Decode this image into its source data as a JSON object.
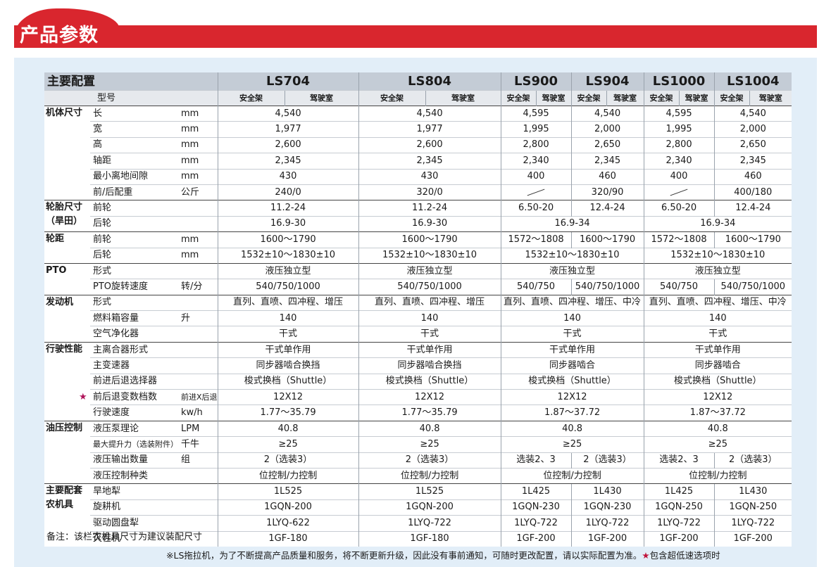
{
  "header": {
    "title": "产品参数"
  },
  "table": {
    "corner": "主要配置",
    "model_label": "型号",
    "models": [
      {
        "name": "LS704",
        "sub": [
          "安全架",
          "驾驶室"
        ]
      },
      {
        "name": "LS804",
        "sub": [
          "安全架",
          "驾驶室"
        ]
      },
      {
        "name": "LS900",
        "sub": [
          "安全架",
          "驾驶室"
        ]
      },
      {
        "name": "LS904",
        "sub": [
          "安全架",
          "驾驶室"
        ]
      },
      {
        "name": "LS1000",
        "sub": [
          "安全架",
          "驾驶室"
        ]
      },
      {
        "name": "LS1004",
        "sub": [
          "安全架",
          "驾驶室"
        ]
      }
    ],
    "groups": [
      {
        "label": [
          "机体尺寸"
        ],
        "rows": [
          {
            "item": "长",
            "unit": "mm",
            "cells": [
              [
                "4,540"
              ],
              [
                "4,540"
              ],
              [
                "4,595",
                "4,540"
              ],
              [
                "4,595",
                "4,540"
              ]
            ]
          },
          {
            "item": "宽",
            "unit": "mm",
            "cells": [
              [
                "1,977"
              ],
              [
                "1,977"
              ],
              [
                "1,995",
                "2,000"
              ],
              [
                "1,995",
                "2,000"
              ]
            ]
          },
          {
            "item": "高",
            "unit": "mm",
            "cells": [
              [
                "2,600"
              ],
              [
                "2,600"
              ],
              [
                "2,800",
                "2,650"
              ],
              [
                "2,800",
                "2,650"
              ]
            ]
          },
          {
            "item": "轴距",
            "unit": "mm",
            "cells": [
              [
                "2,345"
              ],
              [
                "2,345"
              ],
              [
                "2,340",
                "2,345"
              ],
              [
                "2,340",
                "2,345"
              ]
            ]
          },
          {
            "item": "最小离地间隙",
            "unit": "mm",
            "cells": [
              [
                "430"
              ],
              [
                "430"
              ],
              [
                "400",
                "460"
              ],
              [
                "400",
                "460"
              ]
            ]
          },
          {
            "item": "前/后配重",
            "unit": "公斤",
            "cells": [
              [
                "240/0"
              ],
              [
                "320/0"
              ],
              [
                null,
                "320/90"
              ],
              [
                null,
                "400/180"
              ]
            ]
          }
        ]
      },
      {
        "label": [
          "轮胎尺寸",
          "（旱田）"
        ],
        "rows": [
          {
            "item": "前轮",
            "cells": [
              [
                "11.2-24"
              ],
              [
                "11.2-24"
              ],
              [
                "6.50-20",
                "12.4-24"
              ],
              [
                "6.50-20",
                "12.4-24"
              ]
            ]
          },
          {
            "item": "后轮",
            "cells": [
              [
                "16.9-30"
              ],
              [
                "16.9-30"
              ],
              [
                "16.9-34"
              ],
              [
                "16.9-34"
              ]
            ]
          }
        ]
      },
      {
        "label": [
          "轮距"
        ],
        "rows": [
          {
            "item": "前轮",
            "unit": "mm",
            "cells": [
              [
                "1600～1790"
              ],
              [
                "1600～1790"
              ],
              [
                "1572～1808",
                "1600～1790"
              ],
              [
                "1572～1808",
                "1600～1790"
              ]
            ]
          },
          {
            "item": "后轮",
            "unit": "mm",
            "cells": [
              [
                "1532±10～1830±10"
              ],
              [
                "1532±10～1830±10"
              ],
              [
                "1532±10～1830±10"
              ],
              [
                "1532±10～1830±10"
              ]
            ]
          }
        ]
      },
      {
        "label": [
          "PTO"
        ],
        "rows": [
          {
            "item": "形式",
            "cells": [
              [
                "液压独立型"
              ],
              [
                "液压独立型"
              ],
              [
                "液压独立型"
              ],
              [
                "液压独立型"
              ]
            ]
          },
          {
            "item": "PTO旋转速度",
            "unit": "转/分",
            "cells": [
              [
                "540/750/1000"
              ],
              [
                "540/750/1000"
              ],
              [
                "540/750",
                "540/750/1000"
              ],
              [
                "540/750",
                "540/750/1000"
              ]
            ]
          }
        ]
      },
      {
        "label": [
          "发动机"
        ],
        "rows": [
          {
            "item": "形式",
            "cells": [
              [
                "直列、直喷、四冲程、增压"
              ],
              [
                "直列、直喷、四冲程、增压"
              ],
              [
                "直列、直喷、四冲程、增压、中冷"
              ],
              [
                "直列、直喷、四冲程、增压、中冷"
              ]
            ]
          },
          {
            "item": "燃料箱容量",
            "unit": "升",
            "cells": [
              [
                "140"
              ],
              [
                "140"
              ],
              [
                "140"
              ],
              [
                "140"
              ]
            ]
          },
          {
            "item": "空气净化器",
            "cells": [
              [
                "干式"
              ],
              [
                "干式"
              ],
              [
                "干式"
              ],
              [
                "干式"
              ]
            ]
          }
        ]
      },
      {
        "label": [
          "行驶性能"
        ],
        "rows": [
          {
            "item": "主离合器形式",
            "cells": [
              [
                "干式单作用"
              ],
              [
                "干式单作用"
              ],
              [
                "干式单作用"
              ],
              [
                "干式单作用"
              ]
            ]
          },
          {
            "item": "主变速器",
            "cells": [
              [
                "同步器啮合换挡"
              ],
              [
                "同步器啮合换挡"
              ],
              [
                "同步器啮合"
              ],
              [
                "同步器啮合"
              ]
            ]
          },
          {
            "item": "前进后退选择器",
            "cells": [
              [
                "梭式换档（Shuttle）"
              ],
              [
                "梭式换档（Shuttle）"
              ],
              [
                "梭式换档（Shuttle）"
              ],
              [
                "梭式换档（Shuttle）"
              ]
            ]
          },
          {
            "star": "★",
            "item": "前后退变数档数",
            "unit": "前进X后退",
            "cells": [
              [
                "12X12"
              ],
              [
                "12X12"
              ],
              [
                "12X12"
              ],
              [
                "12X12"
              ]
            ]
          },
          {
            "item": "行驶速度",
            "unit": "kw/h",
            "cells": [
              [
                "1.77～35.79"
              ],
              [
                "1.77～35.79"
              ],
              [
                "1.87～37.72"
              ],
              [
                "1.87～37.72"
              ]
            ]
          }
        ]
      },
      {
        "label": [
          "油压控制"
        ],
        "rows": [
          {
            "item": "液压泵理论",
            "unit": "LPM",
            "cells": [
              [
                "40.8"
              ],
              [
                "40.8"
              ],
              [
                "40.8"
              ],
              [
                "40.8"
              ]
            ]
          },
          {
            "item": "最大提升力（选装附件）",
            "unit": "千牛",
            "cells": [
              [
                "≥25"
              ],
              [
                "≥25"
              ],
              [
                "≥25"
              ],
              [
                "≥25"
              ]
            ]
          },
          {
            "item": "液压输出数量",
            "unit": "组",
            "cells": [
              [
                "2（选装3）"
              ],
              [
                "2（选装3）"
              ],
              [
                "选装2、3",
                "2（选装3）"
              ],
              [
                "选装2、3",
                "2（选装3）"
              ]
            ]
          },
          {
            "item": "液压控制种类",
            "cells": [
              [
                "位控制/力控制"
              ],
              [
                "位控制/力控制"
              ],
              [
                "位控制/力控制"
              ],
              [
                "位控制/力控制"
              ]
            ]
          }
        ]
      },
      {
        "label": [
          "主要配套",
          "农机具"
        ],
        "rows": [
          {
            "item": "旱地犁",
            "cells": [
              [
                "1L525"
              ],
              [
                "1L525"
              ],
              [
                "1L425",
                "1L430"
              ],
              [
                "1L425",
                "1L430"
              ]
            ]
          },
          {
            "item": "旋耕机",
            "cells": [
              [
                "1GQN-200"
              ],
              [
                "1GQN-200"
              ],
              [
                "1GQN-230",
                "1GQN-230"
              ],
              [
                "1GQN-250",
                "1GQN-250"
              ]
            ]
          },
          {
            "item": "驱动圆盘犁",
            "cells": [
              [
                "1LYQ-622"
              ],
              [
                "1LYQ-722"
              ],
              [
                "1LYQ-722",
                "1LYQ-722"
              ],
              [
                "1LYQ-722",
                "1LYQ-722"
              ]
            ]
          },
          {
            "item": "灭茬机",
            "cells": [
              [
                "1GF-180"
              ],
              [
                "1GF-180"
              ],
              [
                "1GF-200",
                "1GF-200"
              ],
              [
                "1GF-200",
                "1GF-200"
              ]
            ]
          }
        ]
      }
    ]
  },
  "notes": {
    "remark": "备注：该栏农机具尺寸为建议装配尺寸",
    "footer": "※LS拖拉机，为了不断提高产品质量和服务，将不断更新升级，因此没有事前通知，可随时更改配置，请以实际配置为准。",
    "star": "★",
    "star_text": "包含超低速选项时"
  }
}
